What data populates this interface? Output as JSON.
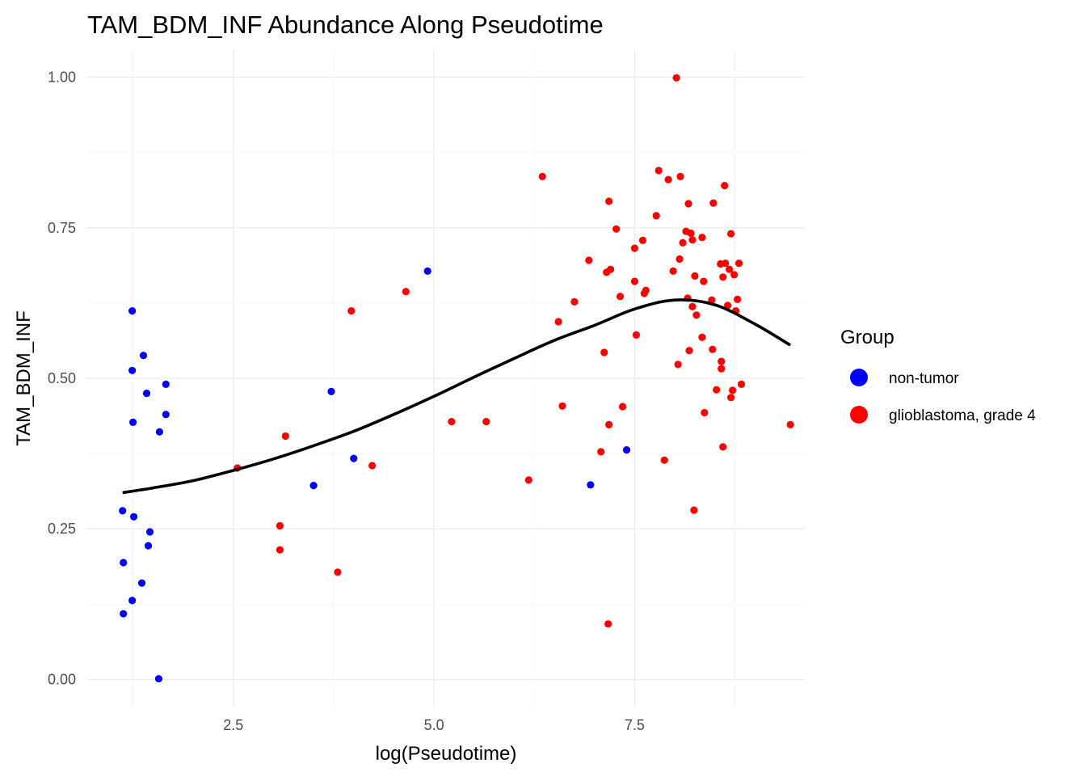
{
  "chart_data": {
    "type": "scatter",
    "title": "TAM_BDM_INF Abundance Along Pseudotime",
    "xlabel": "log(Pseudotime)",
    "ylabel": "TAM_BDM_INF",
    "xlim": [
      0.67,
      9.62
    ],
    "ylim": [
      -0.045,
      1.045
    ],
    "x_ticks": [
      2.5,
      5.0,
      7.5
    ],
    "x_tick_labels": [
      "2.5",
      "5.0",
      "7.5"
    ],
    "y_ticks": [
      0.0,
      0.25,
      0.5,
      0.75,
      1.0
    ],
    "y_tick_labels": [
      "0.00",
      "0.25",
      "0.50",
      "0.75",
      "1.00"
    ],
    "grid": true,
    "legend": {
      "title": "Group",
      "position": "right",
      "entries": [
        {
          "label": "non-tumor",
          "color": "#0000ff"
        },
        {
          "label": "glioblastoma, grade 4",
          "color": "#ff0000"
        }
      ]
    },
    "series": [
      {
        "name": "non-tumor",
        "color": "#0000ff",
        "points": [
          [
            1.24,
            0.612
          ],
          [
            1.38,
            0.538
          ],
          [
            1.24,
            0.513
          ],
          [
            1.42,
            0.475
          ],
          [
            1.66,
            0.49
          ],
          [
            1.66,
            0.44
          ],
          [
            1.25,
            0.427
          ],
          [
            1.58,
            0.411
          ],
          [
            1.12,
            0.28
          ],
          [
            1.26,
            0.27
          ],
          [
            1.46,
            0.245
          ],
          [
            1.44,
            0.222
          ],
          [
            1.13,
            0.194
          ],
          [
            1.36,
            0.16
          ],
          [
            1.24,
            0.131
          ],
          [
            1.13,
            0.109
          ],
          [
            1.57,
            0.001
          ],
          [
            3.72,
            0.478
          ],
          [
            4.0,
            0.367
          ],
          [
            3.5,
            0.322
          ],
          [
            4.92,
            0.678
          ],
          [
            6.95,
            0.323
          ],
          [
            7.4,
            0.381
          ]
        ]
      },
      {
        "name": "glioblastoma, grade 4",
        "color": "#ff0000",
        "points": [
          [
            2.55,
            0.351
          ],
          [
            3.15,
            0.404
          ],
          [
            3.08,
            0.255
          ],
          [
            3.08,
            0.215
          ],
          [
            3.8,
            0.178
          ],
          [
            3.97,
            0.612
          ],
          [
            4.23,
            0.355
          ],
          [
            4.65,
            0.644
          ],
          [
            5.22,
            0.428
          ],
          [
            5.65,
            0.428
          ],
          [
            6.18,
            0.331
          ],
          [
            6.35,
            0.835
          ],
          [
            6.55,
            0.594
          ],
          [
            6.6,
            0.454
          ],
          [
            6.75,
            0.627
          ],
          [
            6.93,
            0.696
          ],
          [
            7.08,
            0.378
          ],
          [
            7.12,
            0.543
          ],
          [
            7.15,
            0.676
          ],
          [
            7.18,
            0.794
          ],
          [
            7.18,
            0.423
          ],
          [
            7.2,
            0.681
          ],
          [
            7.27,
            0.748
          ],
          [
            7.32,
            0.636
          ],
          [
            7.35,
            0.453
          ],
          [
            7.5,
            0.716
          ],
          [
            7.5,
            0.661
          ],
          [
            7.52,
            0.572
          ],
          [
            7.6,
            0.729
          ],
          [
            7.62,
            0.641
          ],
          [
            7.64,
            0.646
          ],
          [
            7.77,
            0.77
          ],
          [
            7.8,
            0.845
          ],
          [
            7.87,
            0.364
          ],
          [
            7.92,
            0.83
          ],
          [
            7.98,
            0.678
          ],
          [
            8.02,
            0.999
          ],
          [
            8.04,
            0.523
          ],
          [
            8.06,
            0.698
          ],
          [
            8.07,
            0.835
          ],
          [
            8.1,
            0.725
          ],
          [
            8.14,
            0.744
          ],
          [
            8.16,
            0.633
          ],
          [
            8.17,
            0.79
          ],
          [
            8.18,
            0.546
          ],
          [
            8.2,
            0.741
          ],
          [
            8.22,
            0.619
          ],
          [
            8.22,
            0.73
          ],
          [
            8.24,
            0.281
          ],
          [
            8.25,
            0.67
          ],
          [
            8.27,
            0.605
          ],
          [
            8.34,
            0.734
          ],
          [
            8.34,
            0.568
          ],
          [
            8.36,
            0.661
          ],
          [
            8.37,
            0.443
          ],
          [
            8.46,
            0.63
          ],
          [
            8.47,
            0.548
          ],
          [
            8.48,
            0.791
          ],
          [
            8.52,
            0.481
          ],
          [
            8.57,
            0.69
          ],
          [
            8.58,
            0.516
          ],
          [
            8.58,
            0.528
          ],
          [
            8.6,
            0.668
          ],
          [
            8.6,
            0.386
          ],
          [
            8.62,
            0.82
          ],
          [
            8.63,
            0.691
          ],
          [
            8.66,
            0.621
          ],
          [
            8.68,
            0.681
          ],
          [
            8.7,
            0.468
          ],
          [
            8.7,
            0.74
          ],
          [
            8.72,
            0.48
          ],
          [
            8.74,
            0.672
          ],
          [
            8.76,
            0.612
          ],
          [
            8.78,
            0.631
          ],
          [
            8.8,
            0.691
          ],
          [
            8.83,
            0.49
          ],
          [
            7.17,
            0.092
          ],
          [
            9.44,
            0.423
          ]
        ]
      }
    ],
    "smooth_line": {
      "color": "#000000",
      "points": [
        [
          1.12,
          0.31
        ],
        [
          1.5,
          0.318
        ],
        [
          2.0,
          0.33
        ],
        [
          2.5,
          0.347
        ],
        [
          3.0,
          0.366
        ],
        [
          3.5,
          0.388
        ],
        [
          4.0,
          0.412
        ],
        [
          4.5,
          0.44
        ],
        [
          5.0,
          0.47
        ],
        [
          5.5,
          0.502
        ],
        [
          6.0,
          0.533
        ],
        [
          6.5,
          0.563
        ],
        [
          7.0,
          0.588
        ],
        [
          7.5,
          0.615
        ],
        [
          8.0,
          0.63
        ],
        [
          8.5,
          0.622
        ],
        [
          9.0,
          0.59
        ],
        [
          9.44,
          0.555
        ]
      ]
    }
  }
}
